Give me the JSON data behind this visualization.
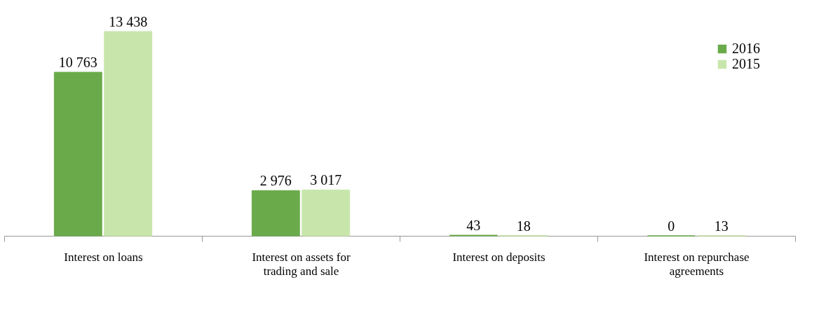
{
  "chart_data": {
    "type": "bar",
    "categories": [
      "Interest on loans",
      "Interest on assets for trading and sale",
      "Interest on deposits",
      "Interest on repurchase agreements"
    ],
    "series": [
      {
        "name": "2016",
        "color": "#6aaa4a",
        "values": [
          10763,
          2976,
          43,
          0
        ],
        "value_labels": [
          "10 763",
          "2 976",
          "43",
          "0"
        ]
      },
      {
        "name": "2015",
        "color": "#c8e6ab",
        "values": [
          13438,
          3017,
          18,
          13
        ],
        "value_labels": [
          "13 438",
          "3 017",
          "18",
          "13"
        ]
      }
    ],
    "legend": "top right",
    "grid": false
  }
}
